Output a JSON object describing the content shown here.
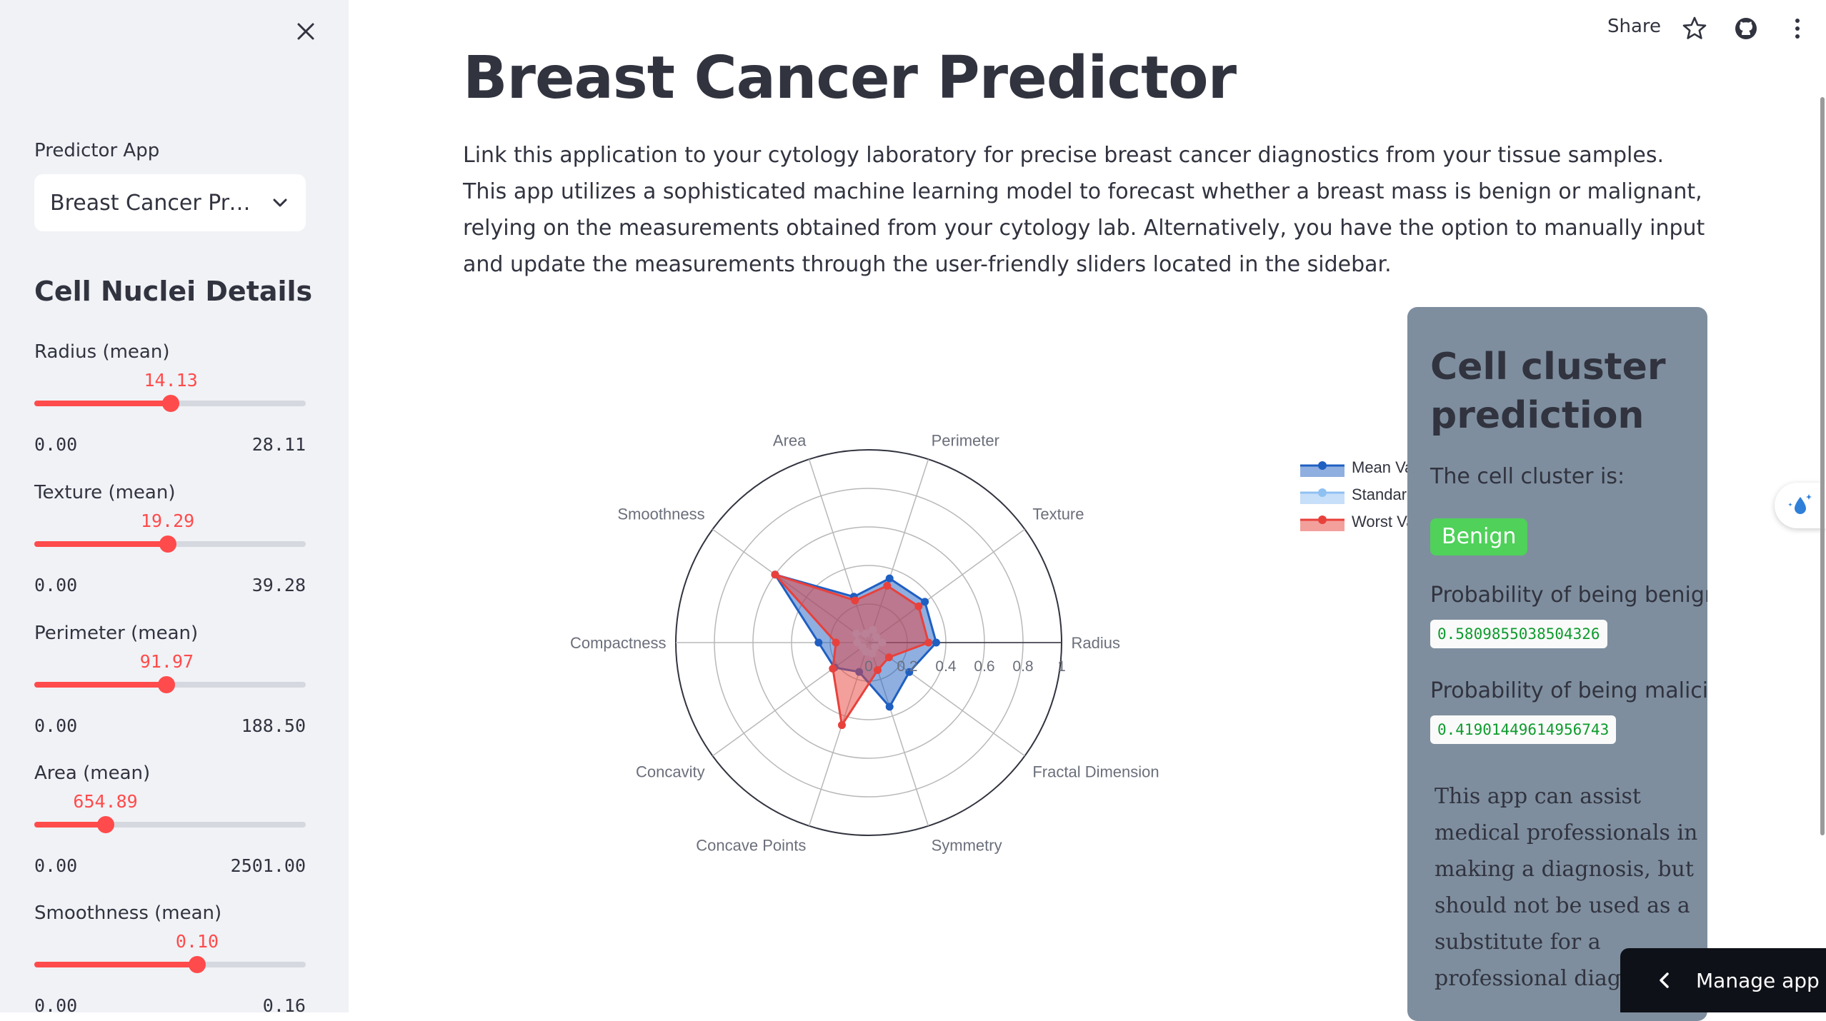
{
  "sidebar": {
    "app_label": "Predictor App",
    "app_select_value": "Breast Cancer Predictor",
    "heading": "Cell Nuclei Details",
    "sliders": [
      {
        "label": "Radius (mean)",
        "value": "14.13",
        "min": "0.00",
        "max": "28.11",
        "fraction": 0.503
      },
      {
        "label": "Texture (mean)",
        "value": "19.29",
        "min": "0.00",
        "max": "39.28",
        "fraction": 0.491
      },
      {
        "label": "Perimeter (mean)",
        "value": "91.97",
        "min": "0.00",
        "max": "188.50",
        "fraction": 0.488
      },
      {
        "label": "Area (mean)",
        "value": "654.89",
        "min": "0.00",
        "max": "2501.00",
        "fraction": 0.262
      },
      {
        "label": "Smoothness (mean)",
        "value": "0.10",
        "min": "0.00",
        "max": "0.16",
        "fraction": 0.6
      }
    ]
  },
  "header": {
    "share_label": "Share",
    "icons": [
      "star-icon",
      "github-icon",
      "more-vert-icon"
    ]
  },
  "main": {
    "title": "Breast Cancer Predictor",
    "description": "Link this application to your cytology laboratory for precise breast cancer diagnostics from your tissue samples. This app utilizes a sophisticated machine learning model to forecast whether a breast mass is benign or malignant, relying on the measurements obtained from your cytology lab. Alternatively, you have the option to manually input and update the measurements through the user-friendly sliders located in the sidebar."
  },
  "chart_data": {
    "type": "radar",
    "axes": [
      "Radius",
      "Texture",
      "Perimeter",
      "Area",
      "Smoothness",
      "Compactness",
      "Concavity",
      "Concave Points",
      "Symmetry",
      "Fractal Dimension"
    ],
    "radial_ticks": [
      "0",
      "0.2",
      "0.4",
      "0.6",
      "0.8",
      "1"
    ],
    "radial_range": [
      0,
      1
    ],
    "legend_placement": "right",
    "series": [
      {
        "name": "Mean Value",
        "color": "#1F5FC2",
        "values": [
          0.35,
          0.36,
          0.35,
          0.25,
          0.6,
          0.26,
          0.22,
          0.16,
          0.35,
          0.26
        ]
      },
      {
        "name": "Standard Error",
        "color": "#8FC0F2",
        "values": [
          0.07,
          0.05,
          0.07,
          0.05,
          0.08,
          0.06,
          0.04,
          0.05,
          0.06,
          0.04
        ]
      },
      {
        "name": "Worst Value",
        "color": "#E8413C",
        "values": [
          0.31,
          0.32,
          0.31,
          0.23,
          0.6,
          0.17,
          0.23,
          0.45,
          0.15,
          0.13
        ]
      }
    ],
    "legend_visible": [
      "Mean Va",
      "Standar",
      "Worst Va"
    ]
  },
  "prediction": {
    "title": "Cell cluster prediction",
    "subtitle": "The cell cluster is:",
    "result": "Benign",
    "result_color": "#4FD15A",
    "benign_label": "Probability of being benign:",
    "benign_value": "0.5809855038504326",
    "malicious_label": "Probability of being malicious:",
    "malicious_value": "0.41901449614956743",
    "disclaimer": "This app can assist medical professionals in making a diagnosis, but should not be used as a substitute for a professional diagnosis."
  },
  "footer": {
    "manage_app_label": "Manage app"
  }
}
